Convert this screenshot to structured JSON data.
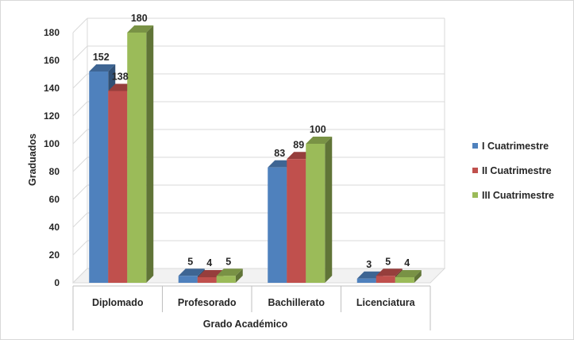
{
  "chart_data": {
    "type": "bar",
    "title": "",
    "xlabel": "Grado Académico",
    "ylabel": "Graduados",
    "categories": [
      "Diplomado",
      "Profesorado",
      "Bachillerato",
      "Licenciatura"
    ],
    "series": [
      {
        "name": "I Cuatrimestre",
        "color": "#4F81BD",
        "values": [
          152,
          5,
          83,
          3
        ]
      },
      {
        "name": "II Cuatrimestre",
        "color": "#C0504D",
        "values": [
          138,
          4,
          89,
          5
        ]
      },
      {
        "name": "III Cuatrimestre",
        "color": "#9BBB59",
        "values": [
          180,
          5,
          100,
          4
        ]
      }
    ],
    "ylim": [
      0,
      180
    ],
    "yticks": [
      0,
      20,
      40,
      60,
      80,
      100,
      120,
      140,
      160,
      180
    ],
    "grid": true,
    "legend_position": "right",
    "style": "3d-clustered-column"
  }
}
